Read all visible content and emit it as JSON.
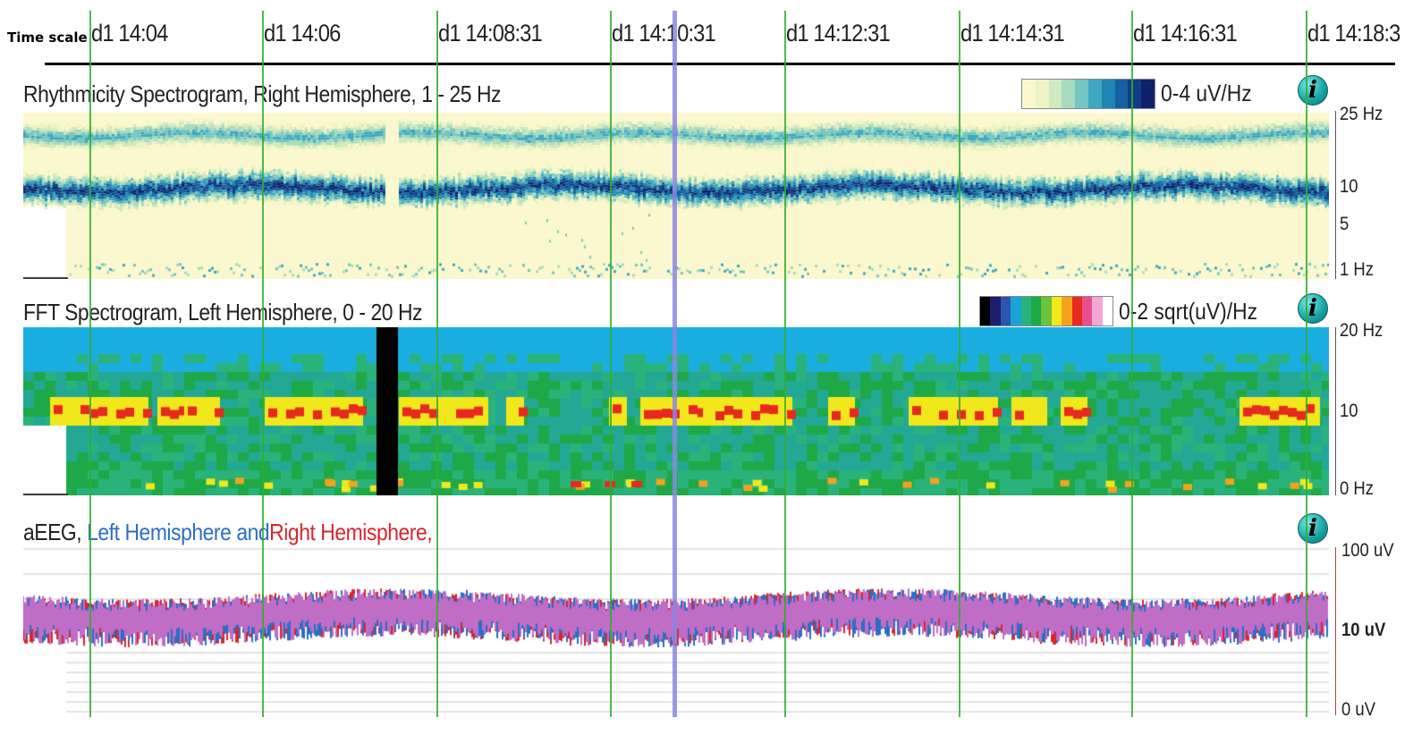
{
  "time_scale": {
    "label": "Time scale",
    "ticks": [
      "d1 14:04",
      "d1 14:06",
      "d1 14:08:31",
      "d1 14:10:31",
      "d1 14:12:31",
      "d1 14:14:31",
      "d1 14:16:31",
      "d1 14:18:3"
    ]
  },
  "rhythmicity": {
    "title": "Rhythmicity Spectrogram, Right Hemisphere, 1 - 25 Hz",
    "legend_text": "0-4 uV/Hz",
    "legend_colors": [
      "#fbf8cf",
      "#eef4c4",
      "#cfe9c0",
      "#a8dbbf",
      "#74c6c2",
      "#3ea8c0",
      "#1f86b3",
      "#1560a0",
      "#123c86",
      "#0f2168"
    ],
    "axis_labels": [
      "25 Hz",
      "10",
      "5",
      "1 Hz"
    ]
  },
  "fft": {
    "title": "FFT Spectrogram, Left Hemisphere, 0 - 20 Hz",
    "legend_text": "0-2 sqrt(uV)/Hz",
    "legend_colors": [
      "#000000",
      "#1c1f6b",
      "#2b56b0",
      "#1aa3d8",
      "#29b37a",
      "#1fa847",
      "#6cc23a",
      "#f1e81c",
      "#f4a21c",
      "#e8291f",
      "#e84f8d",
      "#f3a7d4",
      "#ffffff"
    ],
    "axis_labels": [
      "20 Hz",
      "10",
      "0 Hz"
    ]
  },
  "aeeg": {
    "title_prefix": "aEEG,",
    "title_left": "Left Hemisphere and",
    "title_right": "Right Hemisphere,",
    "color_left": "#2a6fc6",
    "color_right": "#d7262e",
    "color_overlap": "#c06dc6",
    "axis_labels": [
      "100 uV",
      "10 uV",
      "0 uV"
    ]
  },
  "info_icon_label": "i",
  "grid_color": "#2fae2f",
  "cursor_color": "#8b86e0"
}
